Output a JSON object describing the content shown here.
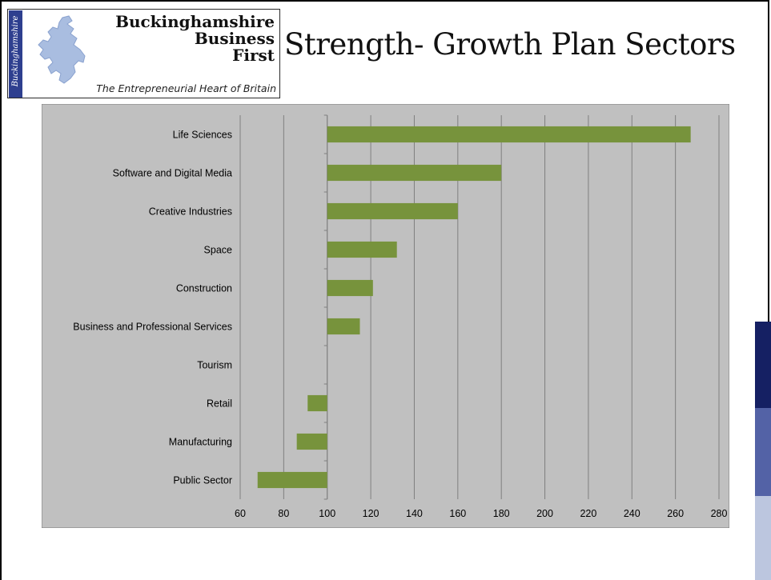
{
  "slide": {
    "title": "Strength- Growth Plan Sectors"
  },
  "logo": {
    "vertical_text": "Buckinghamshire",
    "name_lines": [
      "Buckinghamshire",
      "Business",
      "First"
    ],
    "tagline": "The Entrepreneurial Heart of Britain",
    "icon": "county-map-icon"
  },
  "colors": {
    "bar": "#77933c",
    "plot_background": "#c0c0c0",
    "logo_strip": "#2e3f8f",
    "accent_dark": "#152063",
    "accent_mid": "#5362a6",
    "accent_light": "#bcc6df"
  },
  "chart_data": {
    "type": "bar",
    "orientation": "horizontal",
    "baseline": 100,
    "categories": [
      "Life Sciences",
      "Software and Digital Media",
      "Creative Industries",
      "Space",
      "Construction",
      "Business and Professional Services",
      "Tourism",
      "Retail",
      "Manufacturing",
      "Public Sector"
    ],
    "values": [
      267,
      180,
      160,
      132,
      121,
      115,
      100,
      91,
      86,
      68
    ],
    "xlim": [
      60,
      280
    ],
    "xticks": [
      60,
      80,
      100,
      120,
      140,
      160,
      180,
      200,
      220,
      240,
      260,
      280
    ],
    "grid": true,
    "legend": "none"
  }
}
